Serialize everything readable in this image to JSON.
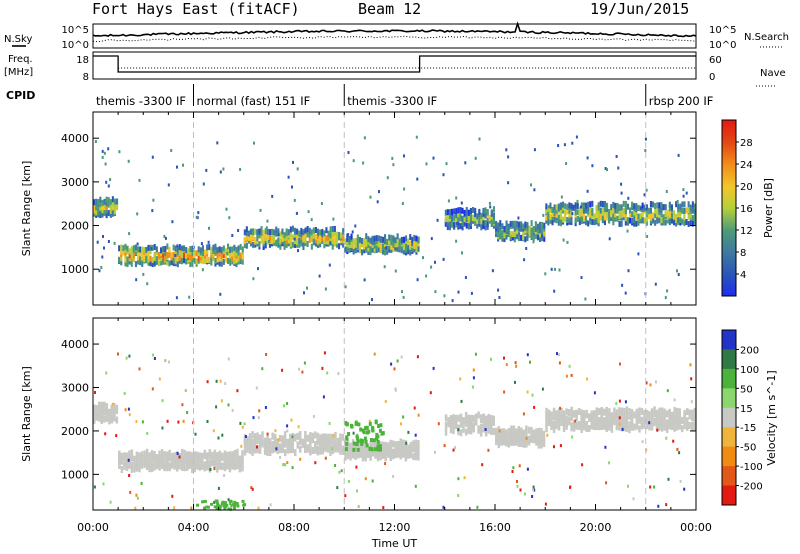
{
  "header": {
    "station": "Fort Hays East (fitACF)",
    "beam": "Beam 12",
    "date": "19/Jun/2015"
  },
  "labels": {
    "nsky": "N.Sky",
    "nsearch": "N.Search",
    "freq_line1": "Freq.",
    "freq_line2": "[MHz]",
    "nave": "Nave",
    "cpid": "CPID",
    "noise_top": "10^5",
    "noise_bottom": "10^0",
    "freq_top": "18",
    "freq_bottom": "8",
    "nave_top": "60",
    "nave_bottom": "0"
  },
  "cpid_segments": [
    {
      "label": "themis -3300 IF",
      "start_hr": 0.0,
      "end_hr": 4.0
    },
    {
      "label": "normal (fast) 151 IF",
      "start_hr": 4.0,
      "end_hr": 10.0
    },
    {
      "label": "themis -3300 IF",
      "start_hr": 10.0,
      "end_hr": 22.0
    },
    {
      "label": "rbsp 200 IF",
      "start_hr": 22.0,
      "end_hr": 24.0
    }
  ],
  "colors": {
    "frame": "#000000",
    "guide": "#bfbfbf",
    "gs_grey": "#c8c8c4",
    "grid": "#d9d9d9"
  },
  "chart_data": [
    {
      "type": "heatmap",
      "panel": "power",
      "ylabel": "Slant Range [km]",
      "ylim": [
        180,
        4600
      ],
      "yticks": [
        1000,
        2000,
        3000,
        4000
      ],
      "cbar_label": "Power [dB]",
      "cbar_ticks": [
        "4",
        "8",
        "12",
        "16",
        "20",
        "24",
        "28"
      ],
      "cbar_colors": [
        "#1f2ef0",
        "#2a54b8",
        "#3f7aa0",
        "#4c9a7a",
        "#b6cf3a",
        "#f2c62a",
        "#f28c1a",
        "#e24a14",
        "#e31a12"
      ],
      "bands": [
        {
          "start_hr": 0.0,
          "end_hr": 1.0,
          "center_km": 2450,
          "width_km": 350,
          "level": 0.6
        },
        {
          "start_hr": 1.0,
          "end_hr": 6.0,
          "center_km": 1350,
          "width_km": 380,
          "level": 0.75
        },
        {
          "start_hr": 6.0,
          "end_hr": 10.0,
          "center_km": 1750,
          "width_km": 400,
          "level": 0.6
        },
        {
          "start_hr": 10.0,
          "end_hr": 13.0,
          "center_km": 1600,
          "width_km": 350,
          "level": 0.55
        },
        {
          "start_hr": 14.0,
          "end_hr": 16.0,
          "center_km": 2200,
          "width_km": 400,
          "level": 0.45
        },
        {
          "start_hr": 16.0,
          "end_hr": 18.0,
          "center_km": 1900,
          "width_km": 350,
          "level": 0.45
        },
        {
          "start_hr": 18.0,
          "end_hr": 24.0,
          "center_km": 2300,
          "width_km": 450,
          "level": 0.55
        }
      ]
    },
    {
      "type": "heatmap",
      "panel": "velocity",
      "ylabel": "Slant Range [km]",
      "xlabel": "Time UT",
      "ylim": [
        180,
        4600
      ],
      "yticks": [
        1000,
        2000,
        3000,
        4000
      ],
      "xticks": [
        "00:00",
        "04:00",
        "08:00",
        "12:00",
        "16:00",
        "20:00",
        "00:00"
      ],
      "xlim_hr": [
        0,
        24
      ],
      "cbar_label": "Velocity [m s^-1]",
      "cbar_ticks": [
        "200",
        "100",
        "50",
        "15",
        "-15",
        "-50",
        "-100",
        "-200"
      ],
      "cbar_colors": [
        "#2233c8",
        "#2f7a44",
        "#4bb23a",
        "#8cd66e",
        "#c8c8c4",
        "#f0b43c",
        "#f08c14",
        "#e2581a",
        "#e31a12"
      ],
      "ground_scatter_color": "#c8c8c4"
    }
  ]
}
